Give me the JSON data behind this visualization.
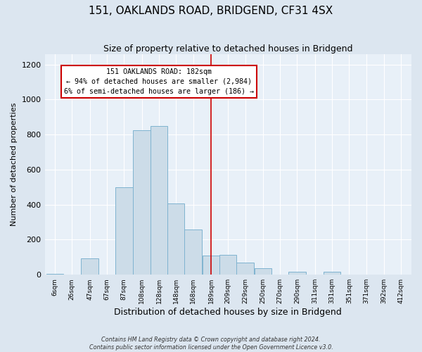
{
  "title": "151, OAKLANDS ROAD, BRIDGEND, CF31 4SX",
  "subtitle": "Size of property relative to detached houses in Bridgend",
  "xlabel": "Distribution of detached houses by size in Bridgend",
  "ylabel": "Number of detached properties",
  "bar_labels": [
    "6sqm",
    "26sqm",
    "47sqm",
    "67sqm",
    "87sqm",
    "108sqm",
    "128sqm",
    "148sqm",
    "168sqm",
    "189sqm",
    "209sqm",
    "229sqm",
    "250sqm",
    "270sqm",
    "290sqm",
    "311sqm",
    "331sqm",
    "351sqm",
    "371sqm",
    "392sqm",
    "412sqm"
  ],
  "bar_centers": [
    6,
    26,
    47,
    67,
    87,
    108,
    128,
    148,
    168,
    189,
    209,
    229,
    250,
    270,
    290,
    311,
    331,
    351,
    371,
    392,
    412
  ],
  "bar_values": [
    5,
    0,
    95,
    0,
    500,
    825,
    850,
    405,
    260,
    110,
    115,
    70,
    35,
    0,
    15,
    0,
    15,
    0,
    0,
    0,
    0
  ],
  "bar_color_fill": "#ccdce8",
  "bar_color_edge": "#7fb3d0",
  "property_line_x": 189,
  "ylim": [
    0,
    1260
  ],
  "yticks": [
    0,
    200,
    400,
    600,
    800,
    1000,
    1200
  ],
  "annotation_title": "151 OAKLANDS ROAD: 182sqm",
  "annotation_line1": "← 94% of detached houses are smaller (2,984)",
  "annotation_line2": "6% of semi-detached houses are larger (186) →",
  "annotation_box_color": "#ffffff",
  "annotation_box_edge": "#cc0000",
  "footer_line1": "Contains HM Land Registry data © Crown copyright and database right 2024.",
  "footer_line2": "Contains public sector information licensed under the Open Government Licence v3.0.",
  "background_color": "#dce6f0",
  "plot_background_color": "#e8f0f8",
  "title_fontsize": 11,
  "subtitle_fontsize": 9,
  "ylabel_fontsize": 8,
  "xlabel_fontsize": 9
}
